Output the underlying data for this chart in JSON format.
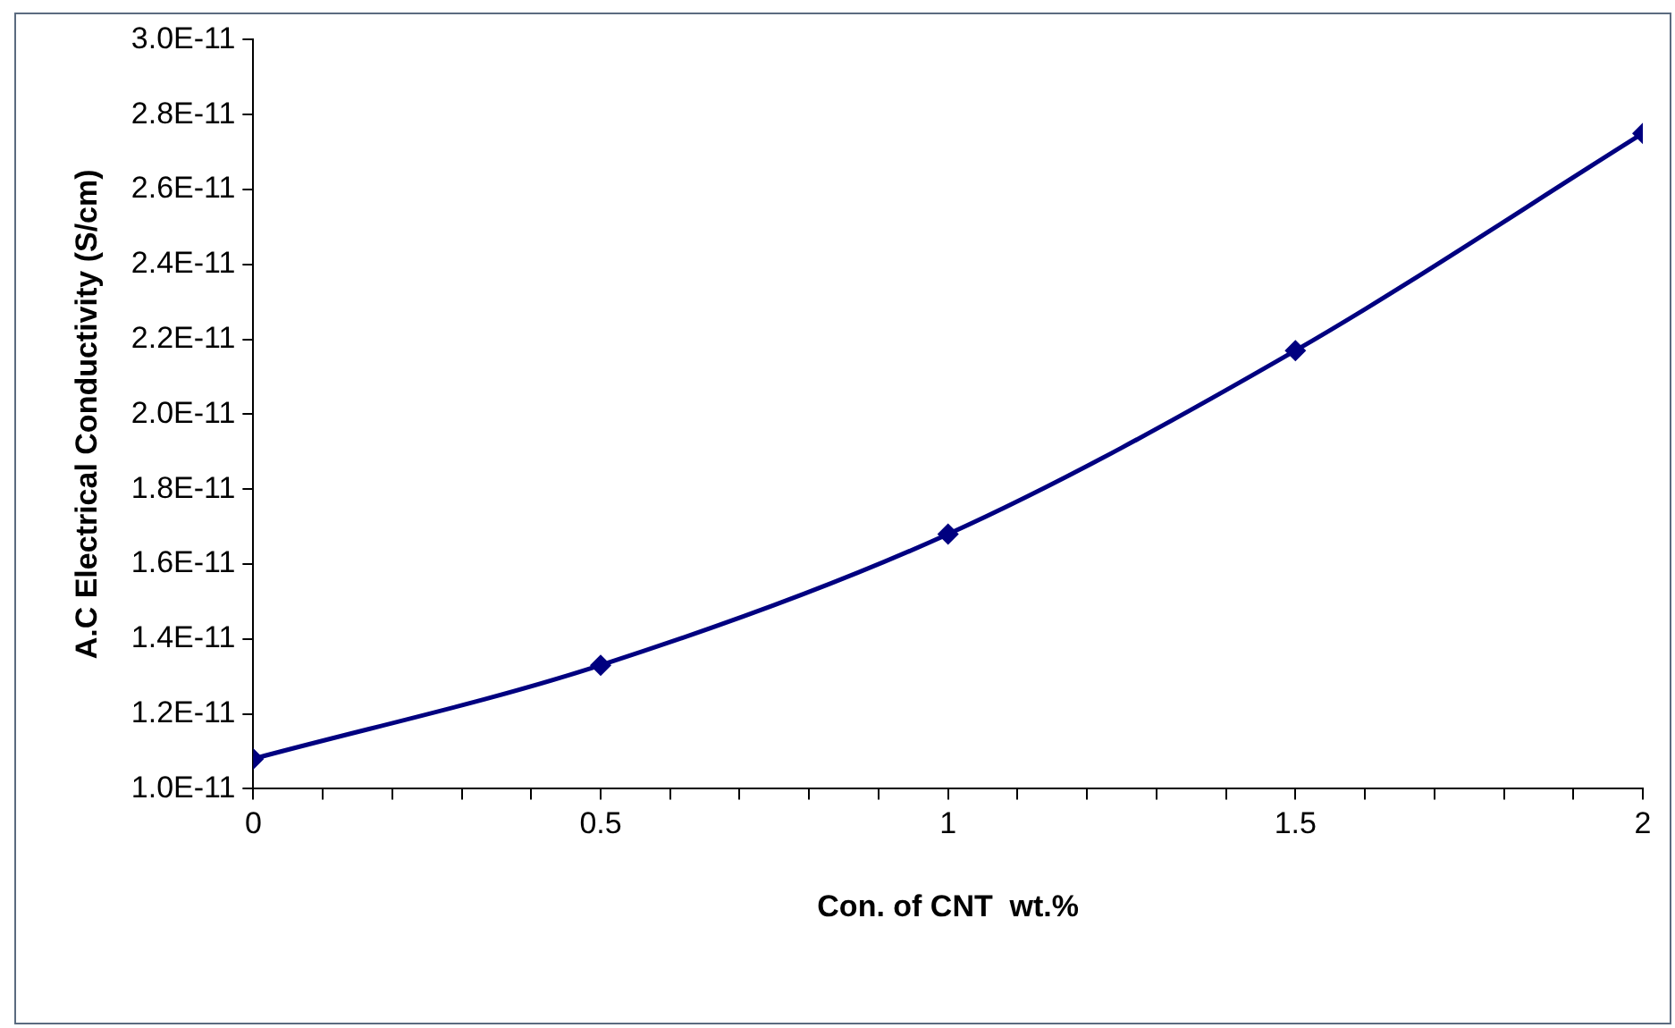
{
  "chart_data": {
    "type": "line",
    "xlabel": "Con. of CNT  wt.%",
    "ylabel": "A.C Electrical Conductivity (S/cm)",
    "x": [
      0,
      0.5,
      1,
      1.5,
      2
    ],
    "series": [
      {
        "color": "#000080",
        "values": [
          1.08e-11,
          1.33e-11,
          1.68e-11,
          2.17e-11,
          2.75e-11
        ]
      }
    ],
    "marker": "diamond",
    "xlim": [
      0,
      2
    ],
    "ylim": [
      1e-11,
      3e-11
    ],
    "xticks": [
      0,
      {
        "value": 0.1,
        "label": null
      },
      {
        "value": 0.2,
        "label": null
      },
      {
        "value": 0.3,
        "label": null
      },
      {
        "value": 0.4,
        "label": null
      },
      0.5,
      {
        "value": 0.6,
        "label": null
      },
      {
        "value": 0.7,
        "label": null
      },
      {
        "value": 0.8,
        "label": null
      },
      {
        "value": 0.9,
        "label": null
      },
      1,
      {
        "value": 1.1,
        "label": null
      },
      {
        "value": 1.2,
        "label": null
      },
      {
        "value": 1.3,
        "label": null
      },
      {
        "value": 1.4,
        "label": null
      },
      1.5,
      {
        "value": 1.6,
        "label": null
      },
      {
        "value": 1.7,
        "label": null
      },
      {
        "value": 1.8,
        "label": null
      },
      {
        "value": 1.9,
        "label": null
      },
      2
    ],
    "yticks": [
      {
        "value": 1e-11,
        "label": "1.0E-11"
      },
      {
        "value": 1.2e-11,
        "label": "1.2E-11"
      },
      {
        "value": 1.4e-11,
        "label": "1.4E-11"
      },
      {
        "value": 1.6e-11,
        "label": "1.6E-11"
      },
      {
        "value": 1.8e-11,
        "label": "1.8E-11"
      },
      {
        "value": 2e-11,
        "label": "2.0E-11"
      },
      {
        "value": 2.2e-11,
        "label": "2.2E-11"
      },
      {
        "value": 2.4e-11,
        "label": "2.4E-11"
      },
      {
        "value": 2.6e-11,
        "label": "2.6E-11"
      },
      {
        "value": 2.8e-11,
        "label": "2.8E-11"
      },
      {
        "value": 3e-11,
        "label": "3.0E-11"
      }
    ]
  }
}
